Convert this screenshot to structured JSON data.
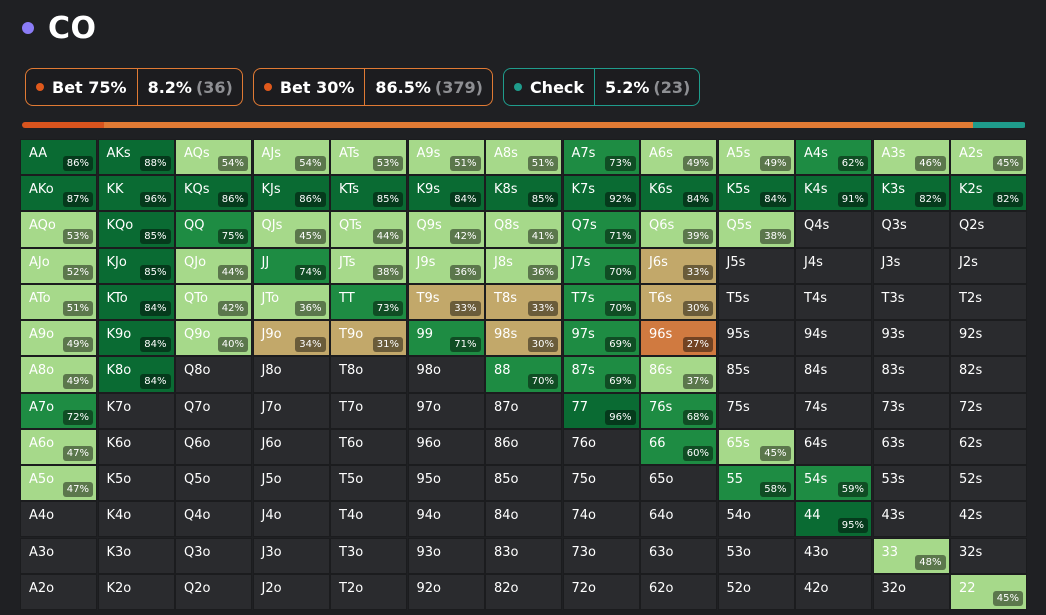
{
  "header": {
    "title": "CO",
    "dot_color": "#8b7cf6"
  },
  "actions": [
    {
      "label": "Bet 75%",
      "percent": "8.2%",
      "count": "(36)",
      "color": "#e0591c",
      "border": "#e07a34"
    },
    {
      "label": "Bet 30%",
      "percent": "86.5%",
      "count": "(379)",
      "color": "#e0591c",
      "border": "#e07a34"
    },
    {
      "label": "Check",
      "percent": "5.2%",
      "count": "(23)",
      "color": "#1f9c8c",
      "border": "#1f9c8c"
    }
  ],
  "freq_bar": [
    {
      "fraction": 0.082,
      "color": "#d8541e"
    },
    {
      "fraction": 0.865,
      "color": "#e07a34"
    },
    {
      "fraction": 0.052,
      "color": "#1f9c8c"
    }
  ],
  "colors": {
    "dark_green": "#0a6b33",
    "mid_green": "#1e8c43",
    "light_green": "#a6d98a",
    "olive": "#c2a86a",
    "orange": "#d07a40",
    "empty": "#2a2b2e"
  },
  "grid": [
    [
      [
        "AA",
        "86%"
      ],
      [
        "AKs",
        "88%"
      ],
      [
        "AQs",
        "54%"
      ],
      [
        "AJs",
        "54%"
      ],
      [
        "ATs",
        "53%"
      ],
      [
        "A9s",
        "51%"
      ],
      [
        "A8s",
        "51%"
      ],
      [
        "A7s",
        "73%"
      ],
      [
        "A6s",
        "49%"
      ],
      [
        "A5s",
        "49%"
      ],
      [
        "A4s",
        "62%"
      ],
      [
        "A3s",
        "46%"
      ],
      [
        "A2s",
        "45%"
      ]
    ],
    [
      [
        "AKo",
        "87%"
      ],
      [
        "KK",
        "96%"
      ],
      [
        "KQs",
        "86%"
      ],
      [
        "KJs",
        "86%"
      ],
      [
        "KTs",
        "85%"
      ],
      [
        "K9s",
        "84%"
      ],
      [
        "K8s",
        "85%"
      ],
      [
        "K7s",
        "92%"
      ],
      [
        "K6s",
        "84%"
      ],
      [
        "K5s",
        "84%"
      ],
      [
        "K4s",
        "91%"
      ],
      [
        "K3s",
        "82%"
      ],
      [
        "K2s",
        "82%"
      ]
    ],
    [
      [
        "AQo",
        "53%"
      ],
      [
        "KQo",
        "85%"
      ],
      [
        "QQ",
        "75%"
      ],
      [
        "QJs",
        "45%"
      ],
      [
        "QTs",
        "44%"
      ],
      [
        "Q9s",
        "42%"
      ],
      [
        "Q8s",
        "41%"
      ],
      [
        "Q7s",
        "71%"
      ],
      [
        "Q6s",
        "39%"
      ],
      [
        "Q5s",
        "38%"
      ],
      [
        "Q4s",
        ""
      ],
      [
        "Q3s",
        ""
      ],
      [
        "Q2s",
        ""
      ]
    ],
    [
      [
        "AJo",
        "52%"
      ],
      [
        "KJo",
        "85%"
      ],
      [
        "QJo",
        "44%"
      ],
      [
        "JJ",
        "74%"
      ],
      [
        "JTs",
        "38%"
      ],
      [
        "J9s",
        "36%"
      ],
      [
        "J8s",
        "36%"
      ],
      [
        "J7s",
        "70%"
      ],
      [
        "J6s",
        "33%"
      ],
      [
        "J5s",
        ""
      ],
      [
        "J4s",
        ""
      ],
      [
        "J3s",
        ""
      ],
      [
        "J2s",
        ""
      ]
    ],
    [
      [
        "ATo",
        "51%"
      ],
      [
        "KTo",
        "84%"
      ],
      [
        "QTo",
        "42%"
      ],
      [
        "JTo",
        "36%"
      ],
      [
        "TT",
        "73%"
      ],
      [
        "T9s",
        "33%"
      ],
      [
        "T8s",
        "33%"
      ],
      [
        "T7s",
        "70%"
      ],
      [
        "T6s",
        "30%"
      ],
      [
        "T5s",
        ""
      ],
      [
        "T4s",
        ""
      ],
      [
        "T3s",
        ""
      ],
      [
        "T2s",
        ""
      ]
    ],
    [
      [
        "A9o",
        "49%"
      ],
      [
        "K9o",
        "84%"
      ],
      [
        "Q9o",
        "40%"
      ],
      [
        "J9o",
        "34%"
      ],
      [
        "T9o",
        "31%"
      ],
      [
        "99",
        "71%"
      ],
      [
        "98s",
        "30%"
      ],
      [
        "97s",
        "69%"
      ],
      [
        "96s",
        "27%"
      ],
      [
        "95s",
        ""
      ],
      [
        "94s",
        ""
      ],
      [
        "93s",
        ""
      ],
      [
        "92s",
        ""
      ]
    ],
    [
      [
        "A8o",
        "49%"
      ],
      [
        "K8o",
        "84%"
      ],
      [
        "Q8o",
        ""
      ],
      [
        "J8o",
        ""
      ],
      [
        "T8o",
        ""
      ],
      [
        "98o",
        ""
      ],
      [
        "88",
        "70%"
      ],
      [
        "87s",
        "69%"
      ],
      [
        "86s",
        "37%"
      ],
      [
        "85s",
        ""
      ],
      [
        "84s",
        ""
      ],
      [
        "83s",
        ""
      ],
      [
        "82s",
        ""
      ]
    ],
    [
      [
        "A7o",
        "72%"
      ],
      [
        "K7o",
        ""
      ],
      [
        "Q7o",
        ""
      ],
      [
        "J7o",
        ""
      ],
      [
        "T7o",
        ""
      ],
      [
        "97o",
        ""
      ],
      [
        "87o",
        ""
      ],
      [
        "77",
        "96%"
      ],
      [
        "76s",
        "68%"
      ],
      [
        "75s",
        ""
      ],
      [
        "74s",
        ""
      ],
      [
        "73s",
        ""
      ],
      [
        "72s",
        ""
      ]
    ],
    [
      [
        "A6o",
        "47%"
      ],
      [
        "K6o",
        ""
      ],
      [
        "Q6o",
        ""
      ],
      [
        "J6o",
        ""
      ],
      [
        "T6o",
        ""
      ],
      [
        "96o",
        ""
      ],
      [
        "86o",
        ""
      ],
      [
        "76o",
        ""
      ],
      [
        "66",
        "60%"
      ],
      [
        "65s",
        "45%"
      ],
      [
        "64s",
        ""
      ],
      [
        "63s",
        ""
      ],
      [
        "62s",
        ""
      ]
    ],
    [
      [
        "A5o",
        "47%"
      ],
      [
        "K5o",
        ""
      ],
      [
        "Q5o",
        ""
      ],
      [
        "J5o",
        ""
      ],
      [
        "T5o",
        ""
      ],
      [
        "95o",
        ""
      ],
      [
        "85o",
        ""
      ],
      [
        "75o",
        ""
      ],
      [
        "65o",
        ""
      ],
      [
        "55",
        "58%"
      ],
      [
        "54s",
        "59%"
      ],
      [
        "53s",
        ""
      ],
      [
        "52s",
        ""
      ]
    ],
    [
      [
        "A4o",
        ""
      ],
      [
        "K4o",
        ""
      ],
      [
        "Q4o",
        ""
      ],
      [
        "J4o",
        ""
      ],
      [
        "T4o",
        ""
      ],
      [
        "94o",
        ""
      ],
      [
        "84o",
        ""
      ],
      [
        "74o",
        ""
      ],
      [
        "64o",
        ""
      ],
      [
        "54o",
        ""
      ],
      [
        "44",
        "95%"
      ],
      [
        "43s",
        ""
      ],
      [
        "42s",
        ""
      ]
    ],
    [
      [
        "A3o",
        ""
      ],
      [
        "K3o",
        ""
      ],
      [
        "Q3o",
        ""
      ],
      [
        "J3o",
        ""
      ],
      [
        "T3o",
        ""
      ],
      [
        "93o",
        ""
      ],
      [
        "83o",
        ""
      ],
      [
        "73o",
        ""
      ],
      [
        "63o",
        ""
      ],
      [
        "53o",
        ""
      ],
      [
        "43o",
        ""
      ],
      [
        "33",
        "48%"
      ],
      [
        "32s",
        ""
      ]
    ],
    [
      [
        "A2o",
        ""
      ],
      [
        "K2o",
        ""
      ],
      [
        "Q2o",
        ""
      ],
      [
        "J2o",
        ""
      ],
      [
        "T2o",
        ""
      ],
      [
        "92o",
        ""
      ],
      [
        "82o",
        ""
      ],
      [
        "72o",
        ""
      ],
      [
        "62o",
        ""
      ],
      [
        "52o",
        ""
      ],
      [
        "42o",
        ""
      ],
      [
        "32o",
        ""
      ],
      [
        "22",
        "45%"
      ]
    ]
  ]
}
